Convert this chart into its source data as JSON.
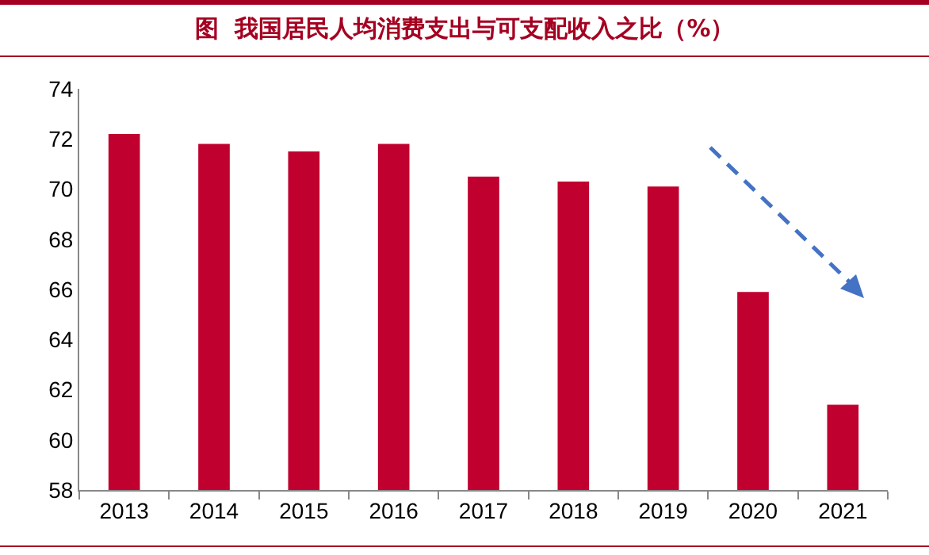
{
  "chart_data": {
    "type": "bar",
    "title": "图  我国居民人均消费支出与可支配收入之比（%）",
    "categories": [
      "2013",
      "2014",
      "2015",
      "2016",
      "2017",
      "2018",
      "2019",
      "2020",
      "2021"
    ],
    "values": [
      72.2,
      71.8,
      71.5,
      71.8,
      70.5,
      70.3,
      70.1,
      65.9,
      61.4
    ],
    "color": "#c0002f",
    "ylim": [
      58,
      74
    ],
    "yticks": [
      58,
      60,
      62,
      64,
      66,
      68,
      70,
      72,
      74
    ],
    "grid": false
  }
}
